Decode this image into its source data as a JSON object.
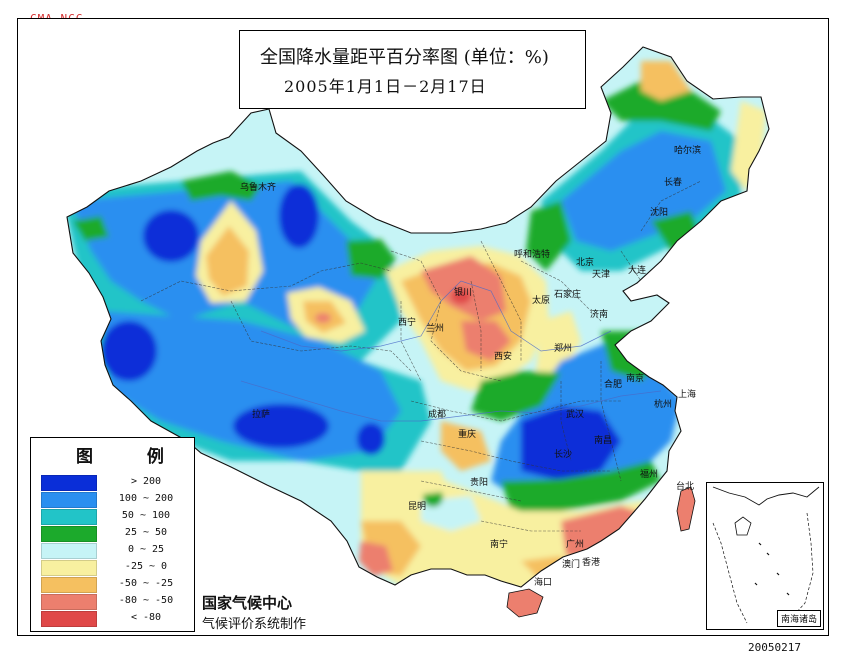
{
  "header": {
    "org_mark": "CMA NCC",
    "title": "全国降水量距平百分率图 (单位：%)",
    "subtitle": "2005年1月1日－2月17日"
  },
  "legend": {
    "title": "图 例",
    "items": [
      {
        "label": "> 200",
        "color": "#0a2ed8"
      },
      {
        "label": "100 ~ 200",
        "color": "#2a8ff0"
      },
      {
        "label": "50 ~ 100",
        "color": "#22c4c8"
      },
      {
        "label": "25 ~ 50",
        "color": "#1caa2c"
      },
      {
        "label": "0 ~ 25",
        "color": "#c6f4f6"
      },
      {
        "label": "-25 ~ 0",
        "color": "#f8f0a0"
      },
      {
        "label": "-50 ~ -25",
        "color": "#f5c060"
      },
      {
        "label": "-80 ~ -50",
        "color": "#ec7f6e"
      },
      {
        "label": "< -80",
        "color": "#e04848"
      }
    ]
  },
  "credits": {
    "line1": "国家气候中心",
    "line2": "气候评价系统制作"
  },
  "date_stamp": "20050217",
  "inset": {
    "label": "南海诸岛"
  },
  "cities": [
    {
      "name": "乌鲁木齐"
    },
    {
      "name": "拉萨"
    },
    {
      "name": "西宁"
    },
    {
      "name": "兰州"
    },
    {
      "name": "银川"
    },
    {
      "name": "呼和浩特"
    },
    {
      "name": "北京"
    },
    {
      "name": "天津"
    },
    {
      "name": "石家庄"
    },
    {
      "name": "太原"
    },
    {
      "name": "济南"
    },
    {
      "name": "郑州"
    },
    {
      "name": "西安"
    },
    {
      "name": "成都"
    },
    {
      "name": "重庆"
    },
    {
      "name": "武汉"
    },
    {
      "name": "合肥"
    },
    {
      "name": "南京"
    },
    {
      "name": "上海"
    },
    {
      "name": "杭州"
    },
    {
      "name": "南昌"
    },
    {
      "name": "长沙"
    },
    {
      "name": "贵阳"
    },
    {
      "name": "昆明"
    },
    {
      "name": "南宁"
    },
    {
      "name": "广州"
    },
    {
      "name": "香港"
    },
    {
      "name": "澳门"
    },
    {
      "name": "福州"
    },
    {
      "name": "台北"
    },
    {
      "name": "海口"
    },
    {
      "name": "沈阳"
    },
    {
      "name": "长春"
    },
    {
      "name": "哈尔滨"
    },
    {
      "name": "大连"
    }
  ]
}
